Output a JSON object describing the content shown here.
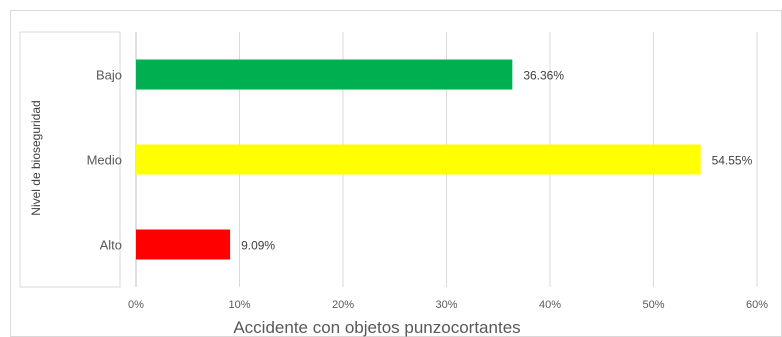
{
  "chart_data": {
    "type": "bar",
    "orientation": "horizontal",
    "categories": [
      "Bajo",
      "Medio",
      "Alto"
    ],
    "values": [
      36.36,
      54.55,
      9.09
    ],
    "value_labels": [
      "36.36%",
      "54.55%",
      "9.09%"
    ],
    "colors": [
      "#00b050",
      "#ffff00",
      "#ff0000"
    ],
    "xlabel": "Accidente con objetos punzocortantes",
    "ylabel": "Nivel de bioseguridad",
    "xlim": [
      0,
      60
    ],
    "x_ticks": [
      0,
      10,
      20,
      30,
      40,
      50,
      60
    ],
    "x_tick_labels": [
      "0%",
      "10%",
      "20%",
      "30%",
      "40%",
      "50%",
      "60%"
    ],
    "grid": "vertical",
    "legend": "none"
  }
}
